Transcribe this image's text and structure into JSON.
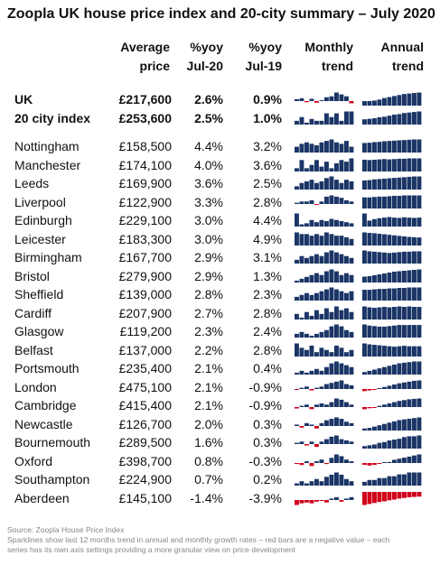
{
  "title": "Zoopla UK house price index and 20-city summary – July 2020",
  "headers": {
    "price_line1": "Average",
    "price_line2": "price",
    "yoy20_line1": "%yoy",
    "yoy20_line2": "Jul-20",
    "yoy19_line1": "%yoy",
    "yoy19_line2": "Jul-19",
    "monthly_line1": "Monthly",
    "monthly_line2": "trend",
    "annual_line1": "Annual",
    "annual_line2": "trend"
  },
  "colors": {
    "positive": "#1b3566",
    "negative": "#d0021b"
  },
  "rows": [
    {
      "name": "UK",
      "price": "£217,600",
      "yoy20": "2.6%",
      "yoy19": "0.9%",
      "bold": true,
      "monthly": [
        0.1,
        0.15,
        -0.1,
        0.12,
        -0.15,
        0.05,
        0.2,
        0.25,
        0.45,
        0.35,
        0.25,
        -0.2
      ],
      "annual": [
        0.9,
        0.9,
        1.0,
        1.2,
        1.5,
        1.7,
        1.9,
        2.1,
        2.3,
        2.4,
        2.5,
        2.6
      ]
    },
    {
      "name": "20 city index",
      "price": "£253,600",
      "yoy20": "2.5%",
      "yoy19": "1.0%",
      "bold": true,
      "monthly": [
        0.1,
        0.2,
        0.05,
        0.15,
        0.1,
        0.1,
        0.3,
        0.2,
        0.3,
        0.1,
        0.35,
        0.35
      ],
      "annual": [
        1.0,
        1.1,
        1.2,
        1.4,
        1.5,
        1.7,
        1.9,
        2.0,
        2.2,
        2.3,
        2.4,
        2.5
      ]
    },
    {
      "name": "Nottingham",
      "price": "£158,500",
      "yoy20": "4.4%",
      "yoy19": "3.2%",
      "monthly": [
        0.2,
        0.3,
        0.35,
        0.3,
        0.25,
        0.35,
        0.4,
        0.45,
        0.35,
        0.3,
        0.4,
        0.2
      ],
      "annual": [
        3.2,
        3.3,
        3.5,
        3.6,
        3.8,
        3.9,
        4.0,
        4.1,
        4.2,
        4.3,
        4.4,
        4.4
      ]
    },
    {
      "name": "Manchester",
      "price": "£174,100",
      "yoy20": "4.0%",
      "yoy19": "3.6%",
      "monthly": [
        0.1,
        0.35,
        0.1,
        0.2,
        0.35,
        0.15,
        0.3,
        0.1,
        0.25,
        0.35,
        0.3,
        0.4
      ],
      "annual": [
        3.6,
        3.5,
        3.6,
        3.7,
        3.8,
        3.7,
        3.8,
        3.9,
        3.9,
        4.0,
        4.0,
        4.0
      ]
    },
    {
      "name": "Leeds",
      "price": "£169,900",
      "yoy20": "3.6%",
      "yoy19": "2.5%",
      "monthly": [
        0.1,
        0.2,
        0.25,
        0.3,
        0.2,
        0.25,
        0.35,
        0.4,
        0.3,
        0.2,
        0.3,
        0.25
      ],
      "annual": [
        2.5,
        2.6,
        2.8,
        2.9,
        3.0,
        3.1,
        3.2,
        3.3,
        3.4,
        3.5,
        3.6,
        3.6
      ]
    },
    {
      "name": "Liverpool",
      "price": "£122,900",
      "yoy20": "3.3%",
      "yoy19": "2.8%",
      "monthly": [
        0.05,
        0.1,
        0.1,
        0.15,
        -0.05,
        0.1,
        0.3,
        0.35,
        0.3,
        0.25,
        0.15,
        0.1
      ],
      "annual": [
        2.8,
        2.8,
        2.9,
        3.0,
        3.0,
        3.1,
        3.2,
        3.2,
        3.3,
        3.3,
        3.3,
        3.3
      ]
    },
    {
      "name": "Edinburgh",
      "price": "£229,100",
      "yoy20": "3.0%",
      "yoy19": "4.4%",
      "monthly": [
        0.6,
        0.1,
        0.15,
        0.3,
        0.2,
        0.3,
        0.25,
        0.35,
        0.3,
        0.25,
        0.2,
        0.15
      ],
      "annual": [
        4.4,
        2.0,
        2.5,
        2.8,
        3.0,
        3.2,
        3.0,
        2.9,
        3.1,
        3.0,
        2.9,
        3.0
      ]
    },
    {
      "name": "Leicester",
      "price": "£183,300",
      "yoy20": "3.0%",
      "yoy19": "4.9%",
      "monthly": [
        0.4,
        0.35,
        0.35,
        0.3,
        0.35,
        0.3,
        0.4,
        0.35,
        0.3,
        0.3,
        0.25,
        0.2
      ],
      "annual": [
        4.9,
        4.7,
        4.6,
        4.4,
        4.2,
        4.0,
        3.8,
        3.6,
        3.4,
        3.2,
        3.1,
        3.0
      ]
    },
    {
      "name": "Birmingham",
      "price": "£167,700",
      "yoy20": "2.9%",
      "yoy19": "3.1%",
      "monthly": [
        0.1,
        0.2,
        0.15,
        0.2,
        0.25,
        0.2,
        0.3,
        0.35,
        0.3,
        0.25,
        0.2,
        0.15
      ],
      "annual": [
        3.1,
        2.9,
        2.8,
        2.7,
        2.6,
        2.5,
        2.6,
        2.7,
        2.8,
        2.8,
        2.9,
        2.9
      ]
    },
    {
      "name": "Bristol",
      "price": "£279,900",
      "yoy20": "2.9%",
      "yoy19": "1.3%",
      "monthly": [
        0.05,
        0.1,
        0.15,
        0.2,
        0.25,
        0.2,
        0.3,
        0.35,
        0.3,
        0.2,
        0.25,
        0.2
      ],
      "annual": [
        1.3,
        1.4,
        1.6,
        1.8,
        2.0,
        2.2,
        2.4,
        2.5,
        2.6,
        2.7,
        2.8,
        2.9
      ]
    },
    {
      "name": "Sheffield",
      "price": "£139,000",
      "yoy20": "2.8%",
      "yoy19": "2.3%",
      "monthly": [
        0.1,
        0.15,
        0.2,
        0.15,
        0.2,
        0.25,
        0.3,
        0.35,
        0.3,
        0.25,
        0.2,
        0.25
      ],
      "annual": [
        2.3,
        2.3,
        2.4,
        2.5,
        2.5,
        2.6,
        2.6,
        2.7,
        2.7,
        2.8,
        2.8,
        2.8
      ]
    },
    {
      "name": "Cardiff",
      "price": "£207,900",
      "yoy20": "2.7%",
      "yoy19": "2.8%",
      "monthly": [
        0.15,
        0.05,
        0.2,
        0.1,
        0.25,
        0.15,
        0.3,
        0.2,
        0.35,
        0.25,
        0.3,
        0.2
      ],
      "annual": [
        2.8,
        2.6,
        2.5,
        2.6,
        2.7,
        2.6,
        2.7,
        2.8,
        2.7,
        2.8,
        2.7,
        2.7
      ]
    },
    {
      "name": "Glasgow",
      "price": "£119,200",
      "yoy20": "2.3%",
      "yoy19": "2.4%",
      "monthly": [
        0.1,
        0.15,
        0.1,
        0.05,
        0.1,
        0.15,
        0.2,
        0.3,
        0.35,
        0.3,
        0.2,
        0.15
      ],
      "annual": [
        2.4,
        2.2,
        2.1,
        2.0,
        2.0,
        2.1,
        2.2,
        2.3,
        2.3,
        2.3,
        2.3,
        2.3
      ]
    },
    {
      "name": "Belfast",
      "price": "£137,000",
      "yoy20": "2.2%",
      "yoy19": "2.8%",
      "monthly": [
        0.3,
        0.2,
        0.15,
        0.25,
        0.1,
        0.2,
        0.15,
        0.1,
        0.25,
        0.2,
        0.1,
        0.15
      ],
      "annual": [
        2.8,
        2.6,
        2.5,
        2.4,
        2.3,
        2.2,
        2.1,
        2.2,
        2.3,
        2.2,
        2.2,
        2.2
      ]
    },
    {
      "name": "Portsmouth",
      "price": "£235,400",
      "yoy20": "2.1%",
      "yoy19": "0.4%",
      "monthly": [
        0.05,
        0.1,
        0.05,
        0.1,
        0.15,
        0.1,
        0.2,
        0.3,
        0.35,
        0.3,
        0.25,
        0.2
      ],
      "annual": [
        0.4,
        0.6,
        0.8,
        1.0,
        1.2,
        1.4,
        1.6,
        1.8,
        1.9,
        2.0,
        2.1,
        2.1
      ]
    },
    {
      "name": "London",
      "price": "£475,100",
      "yoy20": "2.1%",
      "yoy19": "-0.9%",
      "monthly": [
        -0.05,
        0.05,
        0.1,
        -0.1,
        0.05,
        0.1,
        0.2,
        0.25,
        0.3,
        0.35,
        0.2,
        0.15
      ],
      "annual": [
        -0.9,
        -0.6,
        -0.2,
        0.2,
        0.5,
        0.8,
        1.1,
        1.4,
        1.6,
        1.8,
        2.0,
        2.1
      ]
    },
    {
      "name": "Cambridge",
      "price": "£415,400",
      "yoy20": "2.1%",
      "yoy19": "-0.9%",
      "monthly": [
        -0.1,
        0.05,
        0.1,
        -0.15,
        0.1,
        0.15,
        0.1,
        0.2,
        0.35,
        0.3,
        0.2,
        0.1
      ],
      "annual": [
        -0.9,
        -0.5,
        -0.1,
        0.3,
        0.6,
        0.9,
        1.2,
        1.5,
        1.7,
        1.9,
        2.0,
        2.1
      ]
    },
    {
      "name": "Newcastle",
      "price": "£126,700",
      "yoy20": "2.0%",
      "yoy19": "0.3%",
      "monthly": [
        0.05,
        -0.1,
        0.1,
        0.05,
        -0.15,
        0.1,
        0.2,
        0.25,
        0.3,
        0.25,
        0.15,
        0.1
      ],
      "annual": [
        0.3,
        0.4,
        0.6,
        0.8,
        1.0,
        1.2,
        1.4,
        1.6,
        1.7,
        1.8,
        1.9,
        2.0
      ]
    },
    {
      "name": "Bournemouth",
      "price": "£289,500",
      "yoy20": "1.6%",
      "yoy19": "0.3%",
      "monthly": [
        0.05,
        0.1,
        -0.1,
        0.1,
        -0.2,
        0.1,
        0.2,
        0.3,
        0.35,
        0.2,
        0.15,
        0.1
      ],
      "annual": [
        0.3,
        0.4,
        0.5,
        0.7,
        0.8,
        1.0,
        1.1,
        1.2,
        1.4,
        1.5,
        1.5,
        1.6
      ]
    },
    {
      "name": "Oxford",
      "price": "£398,700",
      "yoy20": "0.8%",
      "yoy19": "-0.3%",
      "monthly": [
        -0.05,
        -0.1,
        0.05,
        -0.15,
        0.05,
        0.1,
        -0.05,
        0.15,
        0.25,
        0.2,
        0.1,
        0.05
      ],
      "annual": [
        -0.3,
        -0.4,
        -0.3,
        -0.1,
        0.0,
        0.1,
        0.3,
        0.4,
        0.5,
        0.6,
        0.7,
        0.8
      ]
    },
    {
      "name": "Southampton",
      "price": "£224,900",
      "yoy20": "0.7%",
      "yoy19": "0.2%",
      "monthly": [
        0.05,
        0.1,
        0.05,
        0.1,
        0.15,
        0.1,
        0.2,
        0.25,
        0.3,
        0.25,
        0.15,
        0.1
      ],
      "annual": [
        0.2,
        0.3,
        0.3,
        0.4,
        0.4,
        0.5,
        0.5,
        0.6,
        0.6,
        0.7,
        0.7,
        0.7
      ]
    },
    {
      "name": "Aberdeen",
      "price": "£145,100",
      "yoy20": "-1.4%",
      "yoy19": "-3.9%",
      "monthly": [
        -0.3,
        -0.2,
        -0.15,
        -0.2,
        -0.1,
        -0.05,
        -0.15,
        0.05,
        0.1,
        -0.1,
        0.05,
        0.1
      ],
      "annual": [
        -3.9,
        -3.6,
        -3.3,
        -3.0,
        -2.8,
        -2.5,
        -2.3,
        -2.0,
        -1.8,
        -1.6,
        -1.5,
        -1.4
      ]
    }
  ],
  "footer": {
    "source": "Source: Zoopla House Price Index",
    "note1": "Sparklines show last 12 months trend in annual and monthly growth rates – red bars are a negative value – each",
    "note2": "series has its own axis settings providing a more granular view on price development"
  }
}
